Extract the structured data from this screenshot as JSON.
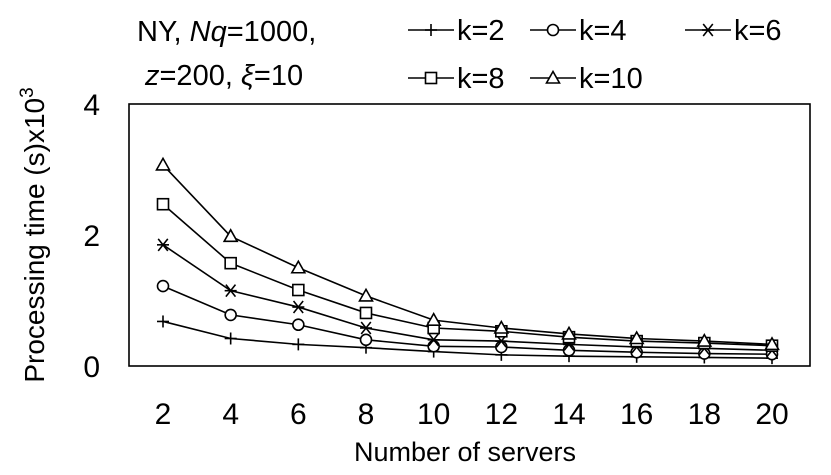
{
  "chart_data": {
    "type": "line",
    "annotation": {
      "line1": {
        "a": "NY, ",
        "b": "Nq",
        "c": "=1000,"
      },
      "line2": {
        "a": "z",
        "b": "=200, ",
        "c": "ξ",
        "d": "=10"
      }
    },
    "xlabel": "Number of servers",
    "ylabel": "Processing time (s)x10",
    "ylabel_sup": "3",
    "x": [
      2,
      4,
      6,
      8,
      10,
      12,
      14,
      16,
      18,
      20
    ],
    "xlim": [
      2,
      20
    ],
    "ylim": [
      0,
      4
    ],
    "yticks": [
      0,
      2,
      4
    ],
    "grid": false,
    "legend_position": "top",
    "series": [
      {
        "name": "k=2",
        "marker": "plus",
        "values": [
          0.68,
          0.42,
          0.33,
          0.28,
          0.22,
          0.17,
          0.15,
          0.14,
          0.13,
          0.12
        ]
      },
      {
        "name": "k=4",
        "marker": "circle",
        "values": [
          1.22,
          0.78,
          0.63,
          0.4,
          0.3,
          0.29,
          0.24,
          0.21,
          0.19,
          0.18
        ]
      },
      {
        "name": "k=6",
        "marker": "asterisk",
        "values": [
          1.85,
          1.15,
          0.9,
          0.58,
          0.4,
          0.38,
          0.33,
          0.29,
          0.27,
          0.24
        ]
      },
      {
        "name": "k=8",
        "marker": "square",
        "values": [
          2.47,
          1.57,
          1.16,
          0.81,
          0.58,
          0.53,
          0.44,
          0.38,
          0.35,
          0.31
        ]
      },
      {
        "name": "k=10",
        "marker": "triangle",
        "values": [
          3.07,
          1.98,
          1.5,
          1.07,
          0.7,
          0.58,
          0.49,
          0.42,
          0.38,
          0.33
        ]
      }
    ]
  }
}
